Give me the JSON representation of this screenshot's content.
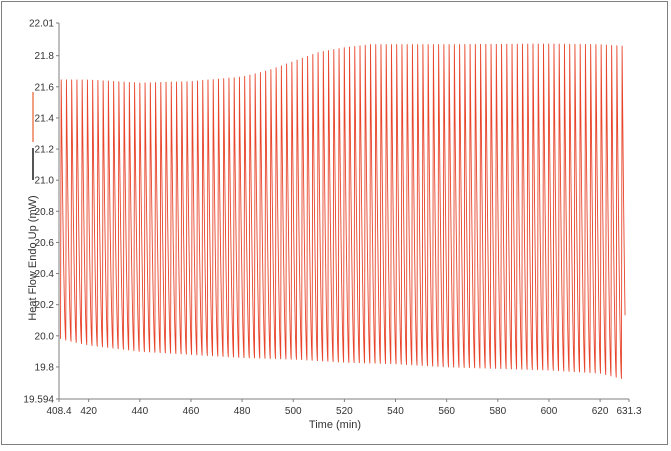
{
  "chart_data": {
    "type": "line",
    "title": "",
    "xlabel": "Time (min)",
    "ylabel": "Heat Flow Endo Up (mW)",
    "xlim": [
      408.4,
      631.3
    ],
    "ylim": [
      19.594,
      22.01
    ],
    "x_ticks": [
      {
        "value": 408.4,
        "label": "408.4"
      },
      {
        "value": 420,
        "label": "420"
      },
      {
        "value": 440,
        "label": "440"
      },
      {
        "value": 460,
        "label": "460"
      },
      {
        "value": 480,
        "label": "480"
      },
      {
        "value": 500,
        "label": "500"
      },
      {
        "value": 520,
        "label": "520"
      },
      {
        "value": 540,
        "label": "540"
      },
      {
        "value": 560,
        "label": "560"
      },
      {
        "value": 580,
        "label": "580"
      },
      {
        "value": 600,
        "label": "600"
      },
      {
        "value": 620,
        "label": "620"
      },
      {
        "value": 631.3,
        "label": "631.3"
      }
    ],
    "y_ticks": [
      {
        "value": 19.594,
        "label": "19.594"
      },
      {
        "value": 19.8,
        "label": "19.8"
      },
      {
        "value": 20.0,
        "label": "20.0"
      },
      {
        "value": 20.2,
        "label": "20.2"
      },
      {
        "value": 20.4,
        "label": "20.4"
      },
      {
        "value": 20.6,
        "label": "20.6"
      },
      {
        "value": 20.8,
        "label": "20.8"
      },
      {
        "value": 21.0,
        "label": "21.0"
      },
      {
        "value": 21.2,
        "label": "21.2"
      },
      {
        "value": 21.4,
        "label": "21.4"
      },
      {
        "value": 21.6,
        "label": "21.6"
      },
      {
        "value": 21.8,
        "label": "21.8"
      },
      {
        "value": 22.01,
        "label": "22.01"
      }
    ],
    "series": [
      {
        "color": "#e8452c",
        "style": "oscillating",
        "x_start": 409.0,
        "x_end": 629.8,
        "oscillation_period": 2.05,
        "upper_envelope": [
          {
            "x": 409.0,
            "y": 21.66
          },
          {
            "x": 420,
            "y": 21.66
          },
          {
            "x": 440,
            "y": 21.64
          },
          {
            "x": 460,
            "y": 21.65
          },
          {
            "x": 480,
            "y": 21.68
          },
          {
            "x": 490,
            "y": 21.72
          },
          {
            "x": 500,
            "y": 21.78
          },
          {
            "x": 510,
            "y": 21.84
          },
          {
            "x": 520,
            "y": 21.87
          },
          {
            "x": 530,
            "y": 21.89
          },
          {
            "x": 560,
            "y": 21.89
          },
          {
            "x": 600,
            "y": 21.895
          },
          {
            "x": 620,
            "y": 21.89
          },
          {
            "x": 629.8,
            "y": 21.88
          }
        ],
        "lower_envelope": [
          {
            "x": 409.0,
            "y": 19.98
          },
          {
            "x": 420,
            "y": 19.94
          },
          {
            "x": 440,
            "y": 19.9
          },
          {
            "x": 460,
            "y": 19.88
          },
          {
            "x": 480,
            "y": 19.86
          },
          {
            "x": 500,
            "y": 19.85
          },
          {
            "x": 520,
            "y": 19.83
          },
          {
            "x": 540,
            "y": 19.82
          },
          {
            "x": 560,
            "y": 19.8
          },
          {
            "x": 580,
            "y": 19.79
          },
          {
            "x": 600,
            "y": 19.78
          },
          {
            "x": 620,
            "y": 19.76
          },
          {
            "x": 629.8,
            "y": 19.72
          }
        ]
      }
    ],
    "colors": {
      "trace": "#e8452c",
      "legend_marker_1": "#f0a080",
      "legend_marker_2": "#555555",
      "axis": "#7f7f7f",
      "text": "#333333"
    },
    "legend": "left",
    "grid": false
  }
}
